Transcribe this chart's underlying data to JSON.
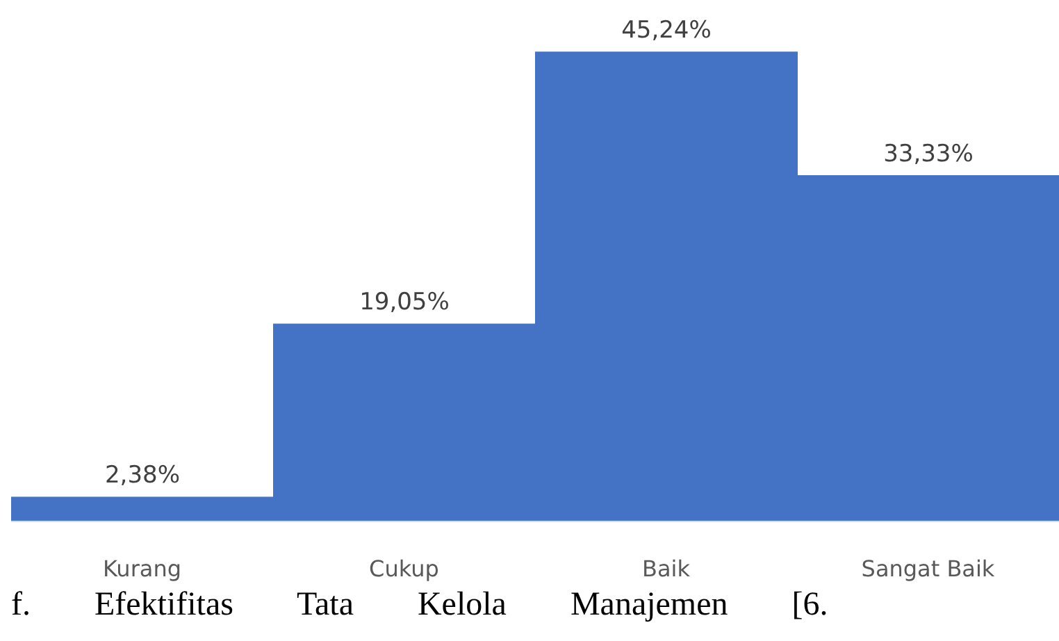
{
  "chart_data": {
    "type": "bar",
    "categories": [
      "Kurang",
      "Cukup",
      "Baik",
      "Sangat Baik"
    ],
    "values": [
      2.38,
      19.05,
      45.24,
      33.33
    ],
    "value_labels": [
      "2,38%",
      "19,05%",
      "45,24%",
      "33,33%"
    ],
    "color": "#4472c4",
    "annotations": [
      "f. Efektifitas Tata Kelola Manajemen [6."
    ]
  }
}
